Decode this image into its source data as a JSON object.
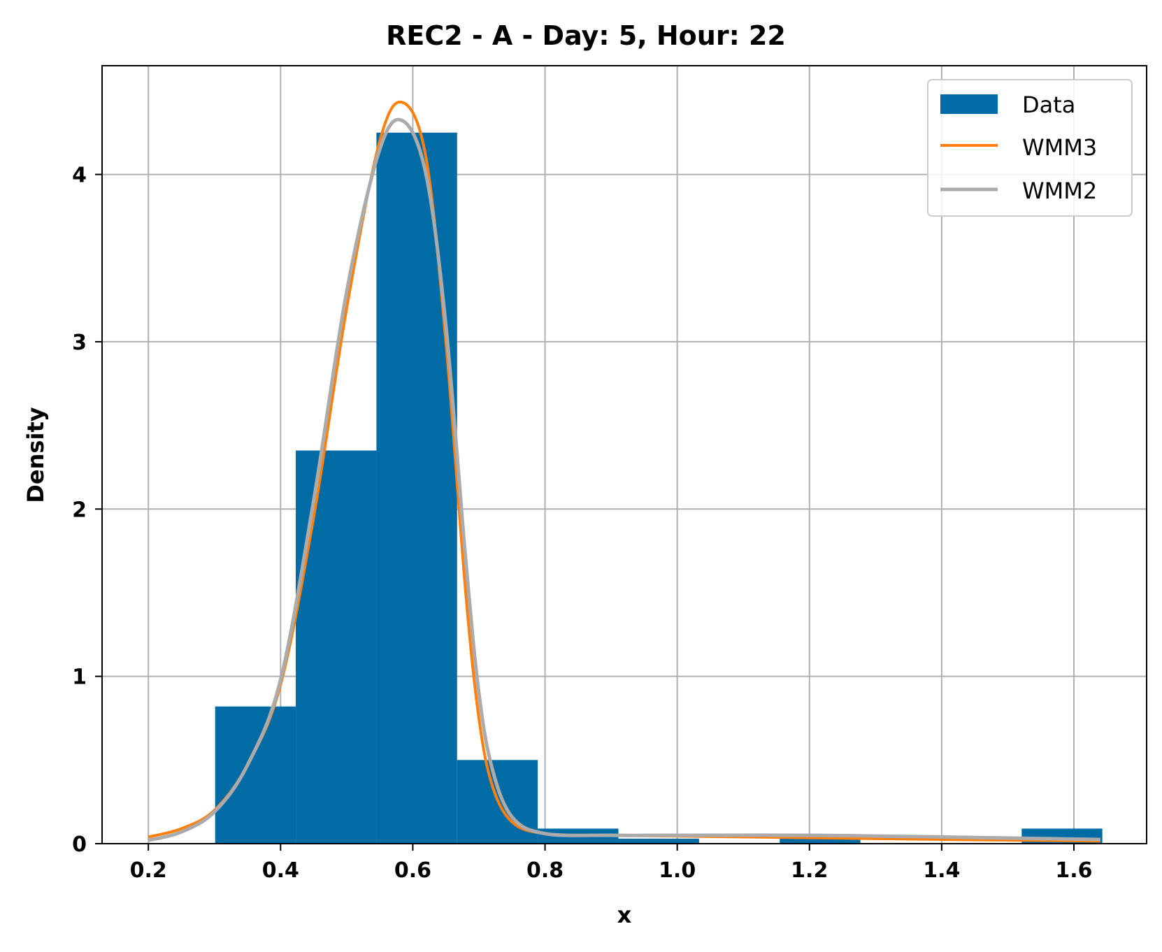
{
  "chart_data": {
    "type": "histogram",
    "title": "REC2 - A - Day: 5, Hour: 22",
    "xlabel": "x",
    "ylabel": "Density",
    "xlim": [
      0.13,
      1.71
    ],
    "ylim": [
      0,
      4.65
    ],
    "xticks": [
      0.2,
      0.4,
      0.6,
      0.8,
      1.0,
      1.2,
      1.4,
      1.6
    ],
    "xtick_labels": [
      "0.2",
      "0.4",
      "0.6",
      "0.8",
      "1.0",
      "1.2",
      "1.4",
      "1.6"
    ],
    "yticks": [
      0,
      1,
      2,
      3,
      4
    ],
    "ytick_labels": [
      "0",
      "1",
      "2",
      "3",
      "4"
    ],
    "grid": true,
    "legend_position": "top-right",
    "legend": [
      "Data",
      "WMM3",
      "WMM2"
    ],
    "colors": {
      "Data": "#006BA4",
      "WMM3": "#FF800E",
      "WMM2": "#ABABAB"
    },
    "histogram": {
      "name": "Data",
      "bin_edges": [
        0.301,
        0.423,
        0.545,
        0.667,
        0.789,
        0.911,
        1.033,
        1.155,
        1.277,
        1.399,
        1.521,
        1.643
      ],
      "densities": [
        0.82,
        2.35,
        4.25,
        0.5,
        0.09,
        0.03,
        0.0,
        0.03,
        0.0,
        0.0,
        0.09
      ]
    },
    "series": [
      {
        "name": "WMM3",
        "x": [
          0.2,
          0.25,
          0.3,
          0.35,
          0.4,
          0.45,
          0.5,
          0.55,
          0.585,
          0.62,
          0.65,
          0.68,
          0.7,
          0.72,
          0.75,
          0.8,
          0.9,
          1.0,
          1.2,
          1.4,
          1.64
        ],
        "y": [
          0.04,
          0.09,
          0.2,
          0.47,
          0.95,
          1.95,
          3.2,
          4.2,
          4.43,
          4.1,
          3.0,
          1.5,
          0.75,
          0.35,
          0.13,
          0.06,
          0.05,
          0.045,
          0.035,
          0.025,
          0.015
        ]
      },
      {
        "name": "WMM2",
        "x": [
          0.2,
          0.25,
          0.3,
          0.35,
          0.4,
          0.45,
          0.5,
          0.55,
          0.585,
          0.62,
          0.65,
          0.68,
          0.7,
          0.72,
          0.75,
          0.8,
          0.9,
          1.0,
          1.2,
          1.4,
          1.64
        ],
        "y": [
          0.02,
          0.07,
          0.19,
          0.47,
          0.98,
          2.05,
          3.3,
          4.15,
          4.32,
          4.0,
          3.1,
          1.7,
          0.9,
          0.45,
          0.16,
          0.06,
          0.05,
          0.05,
          0.05,
          0.04,
          0.025
        ]
      }
    ]
  }
}
